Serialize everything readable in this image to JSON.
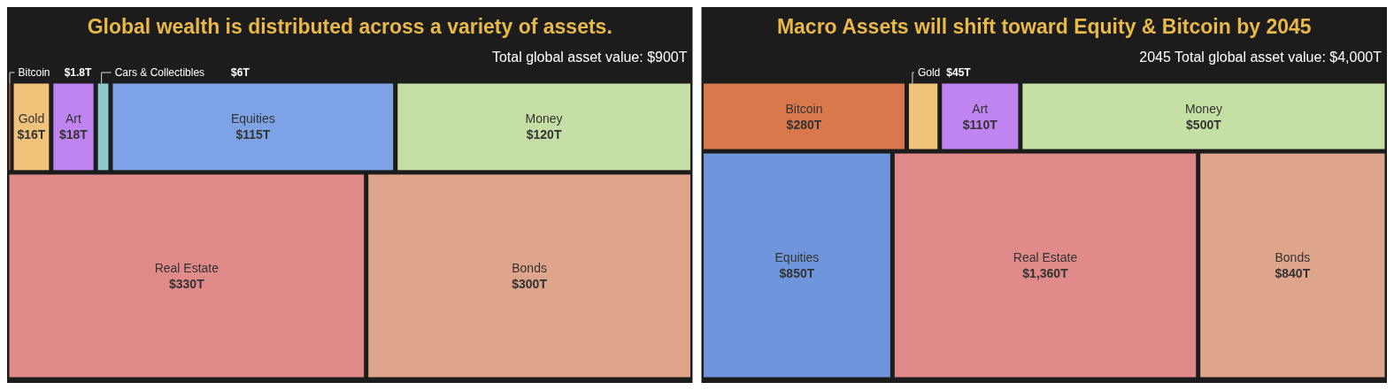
{
  "chart_data": [
    {
      "type": "other",
      "title": "Global wealth is distributed across a variety of assets.",
      "annotations": [
        "Total global asset value: $900T"
      ],
      "categories": [
        "Bitcoin",
        "Gold",
        "Art",
        "Cars & Collectibles",
        "Equities",
        "Real Estate",
        "Bonds",
        "Money"
      ],
      "values": [
        1.8,
        16,
        18,
        6,
        115,
        330,
        300,
        120
      ],
      "value_labels": [
        "$1.8T",
        "$16T",
        "$18T",
        "$6T",
        "$115T",
        "$330T",
        "$300T",
        "$120T"
      ],
      "colors": [
        "#d9804a",
        "#f0c27a",
        "#c084f0",
        "#8fc9c9",
        "#7da3e6",
        "#e08a8a",
        "#dea58a",
        "#c5dea5"
      ]
    },
    {
      "type": "other",
      "title": "Macro Assets will shift toward Equity & Bitcoin by 2045",
      "annotations": [
        "2045 Total global asset value: $4,000T"
      ],
      "categories": [
        "Bitcoin",
        "Gold",
        "Art",
        "Money",
        "Equities",
        "Real Estate",
        "Bonds"
      ],
      "values": [
        280,
        45,
        110,
        500,
        850,
        1360,
        840
      ],
      "value_labels": [
        "$280T",
        "$45T",
        "$110T",
        "$500T",
        "$850T",
        "$1,360T",
        "$840T"
      ],
      "colors": [
        "#d9784a",
        "#f0c27a",
        "#c084f0",
        "#c5e0a5",
        "#6f96dc",
        "#e08a8a",
        "#dea58a"
      ]
    }
  ]
}
